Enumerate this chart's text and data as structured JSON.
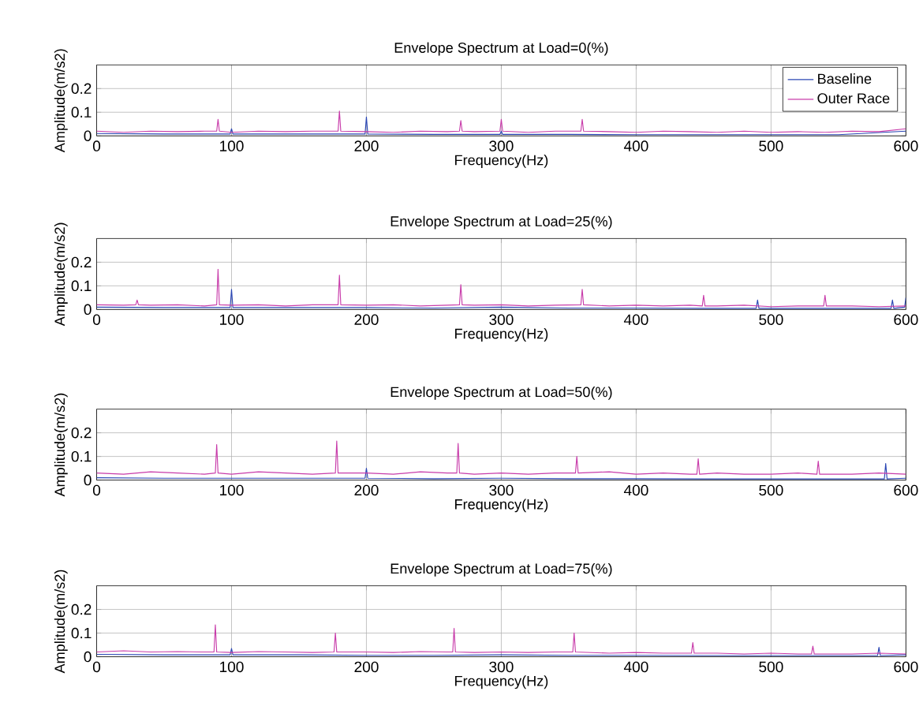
{
  "chart_data": [
    {
      "type": "line",
      "title": "Envelope Spectrum at Load=0(%)",
      "xlabel": "Frequency(Hz)",
      "ylabel": "Amplitude(m/s2)",
      "xlim": [
        0,
        600
      ],
      "ylim": [
        0,
        0.3
      ],
      "xticks": [
        0,
        100,
        200,
        300,
        400,
        500,
        600
      ],
      "yticks": [
        0,
        0.1,
        0.2
      ],
      "grid": true,
      "legend": "top right",
      "series": [
        {
          "name": "Baseline",
          "color": "#2a46b4",
          "x": [
            0,
            50,
            99,
            100,
            101,
            150,
            199,
            200,
            201,
            250,
            299,
            300,
            301,
            350,
            400,
            450,
            500,
            550,
            600
          ],
          "values": [
            0.01,
            0.008,
            0.008,
            0.03,
            0.008,
            0.008,
            0.008,
            0.08,
            0.008,
            0.006,
            0.006,
            0.02,
            0.006,
            0.006,
            0.005,
            0.005,
            0.005,
            0.005,
            0.02
          ]
        },
        {
          "name": "Outer Race",
          "color": "#c83caa",
          "x": [
            0,
            20,
            40,
            60,
            80,
            89,
            90,
            91,
            100,
            120,
            140,
            160,
            179,
            180,
            181,
            200,
            220,
            240,
            260,
            269,
            270,
            271,
            280,
            299,
            300,
            301,
            320,
            340,
            359,
            360,
            361,
            380,
            400,
            420,
            440,
            460,
            480,
            500,
            520,
            540,
            560,
            580,
            600
          ],
          "values": [
            0.02,
            0.015,
            0.02,
            0.018,
            0.02,
            0.02,
            0.07,
            0.02,
            0.015,
            0.02,
            0.018,
            0.02,
            0.02,
            0.105,
            0.02,
            0.018,
            0.015,
            0.02,
            0.018,
            0.02,
            0.065,
            0.02,
            0.018,
            0.02,
            0.07,
            0.02,
            0.015,
            0.02,
            0.02,
            0.07,
            0.02,
            0.018,
            0.015,
            0.02,
            0.018,
            0.015,
            0.02,
            0.015,
            0.018,
            0.015,
            0.02,
            0.018,
            0.03
          ]
        }
      ]
    },
    {
      "type": "line",
      "title": "Envelope Spectrum at Load=25(%)",
      "xlabel": "Frequency(Hz)",
      "ylabel": "Amplitude(m/s2)",
      "xlim": [
        0,
        600
      ],
      "ylim": [
        0,
        0.3
      ],
      "xticks": [
        0,
        100,
        200,
        300,
        400,
        500,
        600
      ],
      "yticks": [
        0,
        0.1,
        0.2
      ],
      "grid": true,
      "series": [
        {
          "color": "#2a46b4",
          "x": [
            0,
            50,
            99,
            100,
            101,
            150,
            200,
            250,
            300,
            350,
            400,
            450,
            489,
            490,
            491,
            550,
            589,
            590,
            591,
            599,
            600
          ],
          "values": [
            0.01,
            0.008,
            0.008,
            0.085,
            0.008,
            0.008,
            0.008,
            0.006,
            0.01,
            0.006,
            0.006,
            0.005,
            0.005,
            0.04,
            0.005,
            0.005,
            0.005,
            0.04,
            0.005,
            0.01,
            0.05
          ]
        },
        {
          "color": "#c83caa",
          "x": [
            0,
            20,
            29,
            30,
            31,
            40,
            60,
            80,
            89,
            90,
            91,
            100,
            120,
            140,
            160,
            179,
            180,
            181,
            200,
            220,
            240,
            260,
            269,
            270,
            271,
            280,
            300,
            320,
            340,
            359,
            360,
            361,
            380,
            400,
            420,
            440,
            449,
            450,
            451,
            460,
            480,
            500,
            520,
            539,
            540,
            541,
            560,
            580,
            600
          ],
          "values": [
            0.02,
            0.018,
            0.02,
            0.04,
            0.02,
            0.018,
            0.02,
            0.015,
            0.02,
            0.17,
            0.02,
            0.018,
            0.02,
            0.015,
            0.02,
            0.02,
            0.145,
            0.02,
            0.018,
            0.02,
            0.015,
            0.018,
            0.02,
            0.105,
            0.02,
            0.018,
            0.02,
            0.015,
            0.018,
            0.02,
            0.085,
            0.02,
            0.015,
            0.018,
            0.015,
            0.018,
            0.015,
            0.06,
            0.015,
            0.015,
            0.018,
            0.012,
            0.015,
            0.015,
            0.06,
            0.015,
            0.015,
            0.012,
            0.015
          ]
        }
      ]
    },
    {
      "type": "line",
      "title": "Envelope Spectrum at Load=50(%)",
      "xlabel": "Frequency(Hz)",
      "ylabel": "Amplitude(m/s2)",
      "xlim": [
        0,
        600
      ],
      "ylim": [
        0,
        0.3
      ],
      "xticks": [
        0,
        100,
        200,
        300,
        400,
        500,
        600
      ],
      "yticks": [
        0,
        0.1,
        0.2
      ],
      "grid": true,
      "series": [
        {
          "color": "#2a46b4",
          "x": [
            0,
            50,
            100,
            150,
            199,
            200,
            201,
            250,
            300,
            350,
            400,
            450,
            500,
            550,
            584,
            585,
            586,
            600
          ],
          "values": [
            0.01,
            0.008,
            0.008,
            0.008,
            0.008,
            0.05,
            0.008,
            0.006,
            0.008,
            0.006,
            0.006,
            0.005,
            0.005,
            0.005,
            0.005,
            0.07,
            0.005,
            0.008
          ]
        },
        {
          "color": "#c83caa",
          "x": [
            0,
            20,
            40,
            60,
            80,
            88,
            89,
            90,
            100,
            120,
            140,
            160,
            177,
            178,
            179,
            200,
            220,
            240,
            260,
            267,
            268,
            269,
            280,
            300,
            320,
            340,
            355,
            356,
            357,
            380,
            400,
            420,
            440,
            445,
            446,
            447,
            460,
            480,
            500,
            520,
            534,
            535,
            536,
            560,
            580,
            600
          ],
          "values": [
            0.03,
            0.025,
            0.035,
            0.03,
            0.025,
            0.03,
            0.15,
            0.03,
            0.025,
            0.035,
            0.03,
            0.025,
            0.03,
            0.165,
            0.03,
            0.03,
            0.025,
            0.035,
            0.03,
            0.03,
            0.155,
            0.03,
            0.025,
            0.03,
            0.025,
            0.03,
            0.03,
            0.1,
            0.03,
            0.035,
            0.025,
            0.03,
            0.025,
            0.025,
            0.09,
            0.025,
            0.03,
            0.025,
            0.025,
            0.03,
            0.025,
            0.08,
            0.025,
            0.025,
            0.03,
            0.025
          ]
        }
      ]
    },
    {
      "type": "line",
      "title": "Envelope Spectrum at Load=75(%)",
      "xlabel": "Frequency(Hz)",
      "ylabel": "Amplitude(m/s2)",
      "xlim": [
        0,
        600
      ],
      "ylim": [
        0,
        0.3
      ],
      "xticks": [
        0,
        100,
        200,
        300,
        400,
        500,
        600
      ],
      "yticks": [
        0,
        0.1,
        0.2
      ],
      "grid": true,
      "series": [
        {
          "color": "#2a46b4",
          "x": [
            0,
            50,
            99,
            100,
            101,
            150,
            200,
            250,
            300,
            350,
            400,
            450,
            500,
            550,
            579,
            580,
            581,
            600
          ],
          "values": [
            0.01,
            0.008,
            0.008,
            0.035,
            0.008,
            0.008,
            0.006,
            0.006,
            0.008,
            0.006,
            0.006,
            0.005,
            0.005,
            0.005,
            0.005,
            0.04,
            0.005,
            0.008
          ]
        },
        {
          "color": "#c83caa",
          "x": [
            0,
            20,
            40,
            60,
            80,
            87,
            88,
            89,
            100,
            120,
            140,
            160,
            176,
            177,
            178,
            200,
            220,
            240,
            260,
            264,
            265,
            266,
            280,
            300,
            320,
            340,
            353,
            354,
            355,
            380,
            400,
            420,
            441,
            442,
            443,
            460,
            480,
            500,
            520,
            530,
            531,
            532,
            560,
            580,
            600
          ],
          "values": [
            0.02,
            0.025,
            0.02,
            0.022,
            0.02,
            0.02,
            0.135,
            0.02,
            0.018,
            0.022,
            0.02,
            0.018,
            0.02,
            0.1,
            0.02,
            0.02,
            0.018,
            0.022,
            0.02,
            0.02,
            0.12,
            0.02,
            0.018,
            0.02,
            0.018,
            0.02,
            0.02,
            0.1,
            0.02,
            0.015,
            0.018,
            0.015,
            0.015,
            0.06,
            0.015,
            0.015,
            0.012,
            0.015,
            0.012,
            0.012,
            0.045,
            0.012,
            0.012,
            0.015,
            0.012
          ]
        }
      ]
    }
  ]
}
